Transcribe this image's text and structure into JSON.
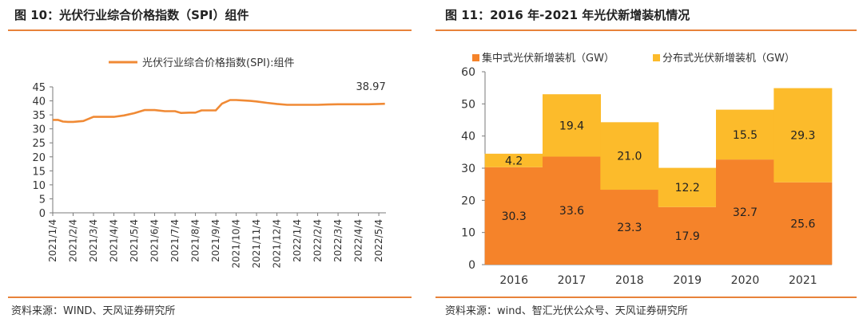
{
  "left_panel": {
    "figure_title": "图 10：光伏行业综合价格指数（SPI）组件",
    "source": "资料来源：WIND、天风证券研究所"
  },
  "right_panel": {
    "figure_title": "图 11：2016 年-2021 年光伏新增装机情况",
    "source": "资料来源：wind、智汇光伏公众号、天风证券研究所"
  },
  "colors": {
    "line": "#f08a35",
    "series_centralized": "#f5832a",
    "series_distributed": "#fcbb2b",
    "rule": "#e8823a"
  },
  "chart_data": [
    {
      "type": "line",
      "title": "光伏行业综合价格指数（SPI）组件",
      "legend": "光伏行业综合价格指数(SPI):组件",
      "ylim": [
        0,
        45
      ],
      "yticks": [
        "0",
        "5",
        "10",
        "15",
        "20",
        "25",
        "30",
        "35",
        "40",
        "45"
      ],
      "xticks": [
        "2021/1/4",
        "2021/2/4",
        "2021/3/4",
        "2021/4/4",
        "2021/5/4",
        "2021/6/4",
        "2021/7/4",
        "2021/8/4",
        "2021/9/4",
        "2021/10/4",
        "2021/11/4",
        "2021/12/4",
        "2022/1/4",
        "2022/2/4",
        "2022/3/4",
        "2022/4/4",
        "2022/5/4"
      ],
      "end_label": "38.97",
      "series": [
        {
          "name": "光伏行业综合价格指数(SPI):组件",
          "x": [
            0,
            0.25,
            0.5,
            0.75,
            1,
            1.5,
            2,
            2.5,
            3,
            3.5,
            4,
            4.5,
            5,
            5.5,
            6,
            6.3,
            6.7,
            7,
            7.3,
            7.7,
            8,
            8.3,
            8.7,
            9,
            9.3,
            9.7,
            10,
            10.5,
            11,
            11.5,
            12,
            12.5,
            13,
            13.5,
            14,
            14.5,
            15,
            15.5,
            16,
            16.3
          ],
          "y": [
            33.2,
            33.2,
            32.6,
            32.5,
            32.5,
            32.8,
            34.3,
            34.3,
            34.3,
            34.8,
            35.6,
            36.7,
            36.7,
            36.3,
            36.3,
            35.7,
            35.8,
            35.8,
            36.6,
            36.6,
            36.6,
            39.0,
            40.3,
            40.3,
            40.2,
            40.0,
            39.8,
            39.3,
            38.9,
            38.6,
            38.6,
            38.6,
            38.6,
            38.7,
            38.8,
            38.8,
            38.8,
            38.8,
            38.9,
            38.97
          ]
        }
      ]
    },
    {
      "type": "bar",
      "stacked": true,
      "title": "2016 年-2021 年光伏新增装机情况",
      "categories": [
        "2016",
        "2017",
        "2018",
        "2019",
        "2020",
        "2021"
      ],
      "ylim": [
        0,
        60
      ],
      "yticks": [
        "0",
        "10",
        "20",
        "30",
        "40",
        "50",
        "60"
      ],
      "series": [
        {
          "name": "集中式光伏新增装机（GW）",
          "values": [
            30.3,
            33.6,
            23.3,
            17.9,
            32.7,
            25.6
          ],
          "labels": [
            "30.3",
            "33.6",
            "23.3",
            "17.9",
            "32.7",
            "25.6"
          ]
        },
        {
          "name": "分布式光伏新增装机（GW）",
          "values": [
            4.2,
            19.4,
            21.0,
            12.2,
            15.5,
            29.3
          ],
          "labels": [
            "4.2",
            "19.4",
            "21.0",
            "12.2",
            "15.5",
            "29.3"
          ]
        }
      ]
    }
  ]
}
